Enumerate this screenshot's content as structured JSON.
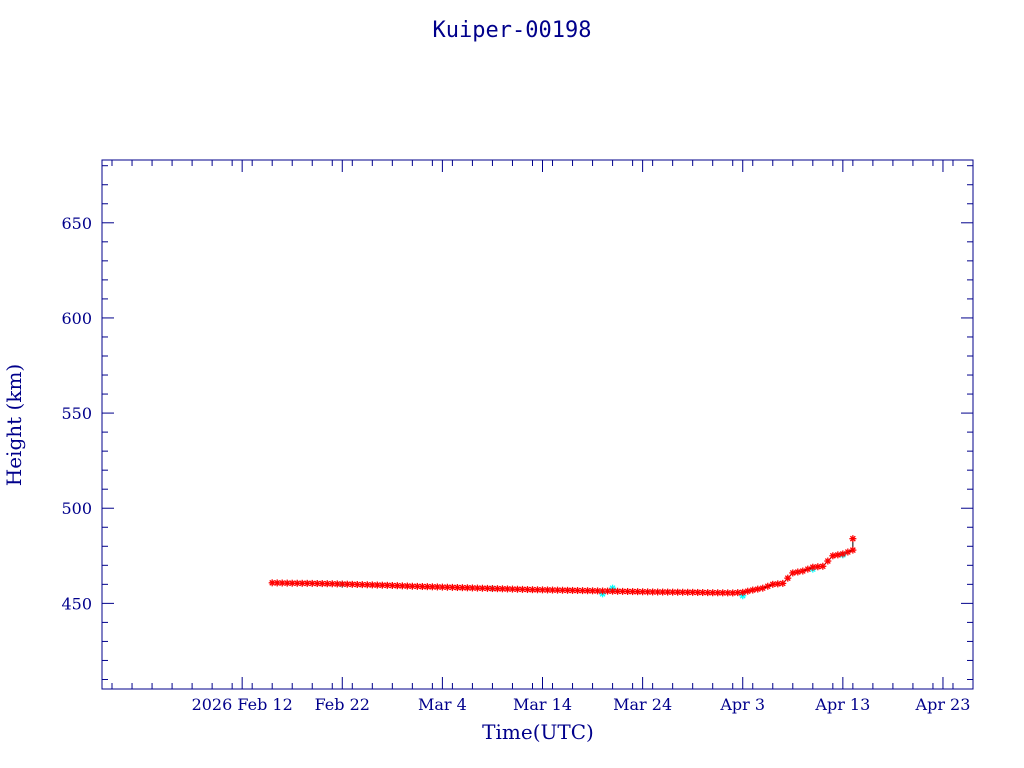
{
  "chart_data": {
    "type": "scatter",
    "title": "Kuiper-00198",
    "xlabel": "Time(UTC)",
    "ylabel": "Height (km)",
    "ylim": [
      405,
      683
    ],
    "xlim": [
      "2026-01-29",
      "2026-04-26"
    ],
    "x_ticks": [
      {
        "date": "2026-02-12",
        "label": "2026 Feb 12"
      },
      {
        "date": "2026-02-22",
        "label": "Feb 22"
      },
      {
        "date": "2026-03-04",
        "label": "Mar  4"
      },
      {
        "date": "2026-03-14",
        "label": "Mar 14"
      },
      {
        "date": "2026-03-24",
        "label": "Mar 24"
      },
      {
        "date": "2026-04-03",
        "label": "Apr  3"
      },
      {
        "date": "2026-04-13",
        "label": "Apr 13"
      },
      {
        "date": "2026-04-23",
        "label": "Apr 23"
      }
    ],
    "y_ticks": [
      450,
      500,
      550,
      600,
      650
    ],
    "grid": false,
    "colors": {
      "frame": "#00008b",
      "series_red": "#ff0000",
      "series_cyan": "#00ffff",
      "line": "#000000"
    },
    "series": [
      {
        "marker": "asterisk",
        "color": "#ff0000",
        "points": [
          [
            "2026-02-15",
            460.8
          ],
          [
            "2026-02-17",
            460.6
          ],
          [
            "2026-02-19",
            460.5
          ],
          [
            "2026-02-21",
            460.3
          ],
          [
            "2026-02-23",
            460.0
          ],
          [
            "2026-02-25",
            459.7
          ],
          [
            "2026-02-27",
            459.4
          ],
          [
            "2026-03-01",
            459.0
          ],
          [
            "2026-03-03",
            458.7
          ],
          [
            "2026-03-05",
            458.4
          ],
          [
            "2026-03-07",
            458.1
          ],
          [
            "2026-03-09",
            457.8
          ],
          [
            "2026-03-11",
            457.5
          ],
          [
            "2026-03-13",
            457.2
          ],
          [
            "2026-03-15",
            457.0
          ],
          [
            "2026-03-17",
            456.8
          ],
          [
            "2026-03-19",
            456.6
          ],
          [
            "2026-03-21",
            456.4
          ],
          [
            "2026-03-23",
            456.2
          ],
          [
            "2026-03-25",
            456.0
          ],
          [
            "2026-03-27",
            455.9
          ],
          [
            "2026-03-29",
            455.8
          ],
          [
            "2026-03-31",
            455.6
          ],
          [
            "2026-04-02",
            455.5
          ],
          [
            "2026-04-03",
            455.8
          ],
          [
            "2026-04-04",
            457.0
          ],
          [
            "2026-04-05",
            458.0
          ],
          [
            "2026-04-06",
            460.0
          ],
          [
            "2026-04-07",
            460.5
          ],
          [
            "2026-04-08",
            466.0
          ],
          [
            "2026-04-09",
            467.0
          ],
          [
            "2026-04-10",
            469.0
          ],
          [
            "2026-04-11",
            469.5
          ],
          [
            "2026-04-12",
            475.0
          ],
          [
            "2026-04-13",
            476.0
          ],
          [
            "2026-04-14",
            478.0
          ],
          [
            "2026-04-14",
            484.0
          ]
        ]
      },
      {
        "marker": "asterisk",
        "color": "#00ffff",
        "points": [
          [
            "2026-02-22",
            460.0
          ],
          [
            "2026-03-09",
            457.8
          ],
          [
            "2026-03-20",
            455.0
          ],
          [
            "2026-03-21",
            458.0
          ],
          [
            "2026-04-03",
            454.0
          ],
          [
            "2026-04-10",
            468.0
          ],
          [
            "2026-04-13",
            475.5
          ]
        ]
      }
    ]
  }
}
